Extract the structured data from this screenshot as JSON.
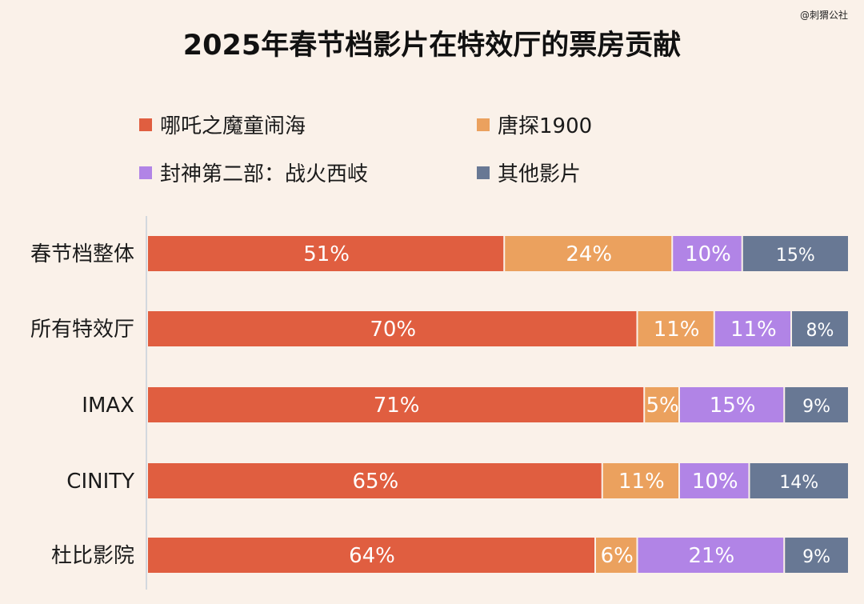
{
  "watermark": "@刺猬公社",
  "chart_data": {
    "type": "bar",
    "orientation": "horizontal",
    "stacked": true,
    "title": "2025年春节档影片在特效厅的票房贡献",
    "categories": [
      "春节档整体",
      "所有特效厅",
      "IMAX",
      "CINITY",
      "杜比影院"
    ],
    "series": [
      {
        "name": "哪吒之魔童闹海",
        "color": "#e05e40",
        "values": [
          51,
          70,
          71,
          65,
          64
        ]
      },
      {
        "name": "唐探1900",
        "color": "#eba15e",
        "values": [
          24,
          11,
          5,
          11,
          6
        ]
      },
      {
        "name": "封神第二部：战火西岐",
        "color": "#b184e6",
        "values": [
          10,
          11,
          15,
          10,
          21
        ]
      },
      {
        "name": "其他影片",
        "color": "#687894",
        "values": [
          15,
          8,
          9,
          14,
          9
        ]
      }
    ],
    "value_suffix": "%",
    "xlim": [
      0,
      100
    ],
    "legend_position": "top",
    "grid": false
  }
}
